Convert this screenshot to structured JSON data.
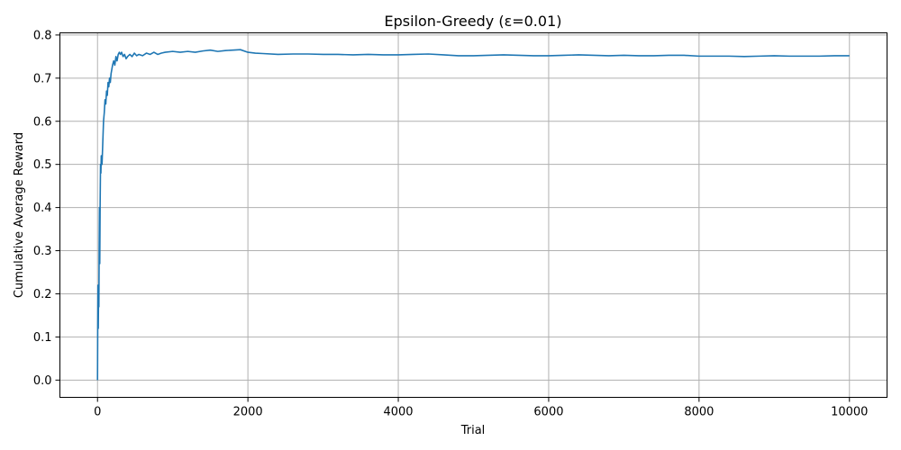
{
  "chart_data": {
    "type": "line",
    "title": "Epsilon-Greedy (ε=0.01)",
    "xlabel": "Trial",
    "ylabel": "Cumulative Average Reward",
    "xlim": [
      -500,
      10500
    ],
    "ylim": [
      -0.04,
      0.805
    ],
    "x_ticks": [
      0,
      2000,
      4000,
      6000,
      8000,
      10000
    ],
    "y_ticks": [
      0.0,
      0.1,
      0.2,
      0.3,
      0.4,
      0.5,
      0.6,
      0.7,
      0.8
    ],
    "x_tick_labels": [
      "0",
      "2000",
      "4000",
      "6000",
      "8000",
      "10000"
    ],
    "y_tick_labels": [
      "0.0",
      "0.1",
      "0.2",
      "0.3",
      "0.4",
      "0.5",
      "0.6",
      "0.7",
      "0.8"
    ],
    "grid": true,
    "line_color": "#1f77b4",
    "series": [
      {
        "x": [
          0,
          3,
          6,
          10,
          14,
          18,
          22,
          26,
          30,
          35,
          40,
          45,
          50,
          60,
          70,
          80,
          90,
          100,
          110,
          120,
          130,
          140,
          150,
          160,
          170,
          180,
          190,
          200,
          215,
          230,
          245,
          260,
          275,
          290,
          305,
          320,
          340,
          360,
          380,
          400,
          430,
          460,
          490,
          520,
          550,
          600,
          650,
          700,
          750,
          800,
          850,
          900,
          1000,
          1100,
          1200,
          1300,
          1400,
          1500,
          1600,
          1700,
          1800,
          1900,
          2000,
          2100,
          2200,
          2400,
          2600,
          2800,
          3000,
          3200,
          3400,
          3600,
          3800,
          4000,
          4200,
          4400,
          4600,
          4800,
          5000,
          5200,
          5400,
          5600,
          5800,
          6000,
          6200,
          6400,
          6600,
          6800,
          7000,
          7200,
          7400,
          7600,
          7800,
          8000,
          8200,
          8400,
          8600,
          8800,
          9000,
          9200,
          9400,
          9600,
          9800,
          10000
        ],
        "y": [
          0.0,
          0.13,
          0.22,
          0.12,
          0.2,
          0.17,
          0.3,
          0.4,
          0.27,
          0.41,
          0.5,
          0.48,
          0.52,
          0.5,
          0.55,
          0.6,
          0.62,
          0.65,
          0.64,
          0.67,
          0.66,
          0.69,
          0.68,
          0.7,
          0.69,
          0.71,
          0.72,
          0.73,
          0.74,
          0.73,
          0.75,
          0.74,
          0.755,
          0.76,
          0.755,
          0.76,
          0.75,
          0.755,
          0.745,
          0.75,
          0.755,
          0.75,
          0.758,
          0.752,
          0.755,
          0.752,
          0.758,
          0.755,
          0.76,
          0.755,
          0.758,
          0.76,
          0.762,
          0.76,
          0.762,
          0.76,
          0.763,
          0.765,
          0.762,
          0.764,
          0.765,
          0.766,
          0.76,
          0.758,
          0.757,
          0.755,
          0.756,
          0.756,
          0.755,
          0.755,
          0.754,
          0.755,
          0.754,
          0.754,
          0.755,
          0.756,
          0.754,
          0.752,
          0.752,
          0.753,
          0.754,
          0.753,
          0.752,
          0.752,
          0.753,
          0.754,
          0.753,
          0.752,
          0.753,
          0.752,
          0.752,
          0.753,
          0.753,
          0.751,
          0.751,
          0.751,
          0.75,
          0.751,
          0.752,
          0.751,
          0.751,
          0.751,
          0.752,
          0.752
        ]
      }
    ]
  }
}
